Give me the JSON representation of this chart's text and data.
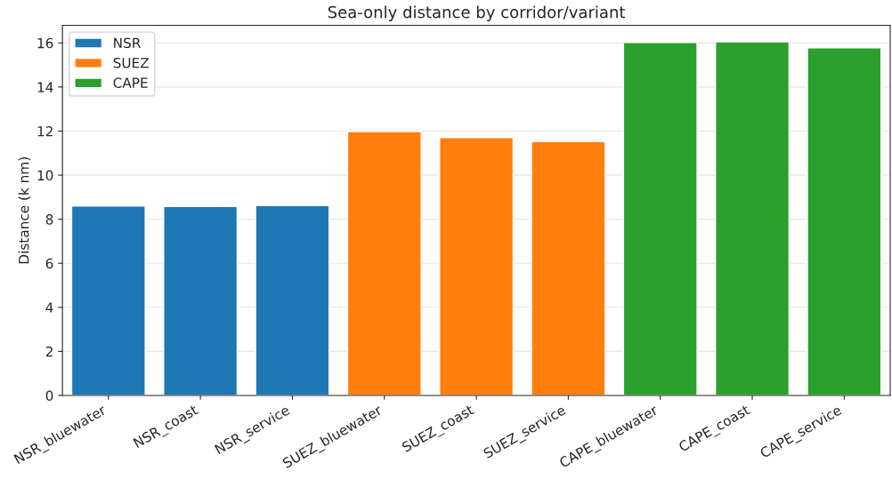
{
  "chart_data": {
    "type": "bar",
    "title": "Sea-only distance by corridor/variant",
    "ylabel": "Distance (k nm)",
    "categories": [
      "NSR_bluewater",
      "NSR_coast",
      "NSR_service",
      "SUEZ_bluewater",
      "SUEZ_coast",
      "SUEZ_service",
      "CAPE_bluewater",
      "CAPE_coast",
      "CAPE_service"
    ],
    "series": [
      {
        "name": "NSR",
        "color": "#1f77b4",
        "values": [
          8.6,
          8.58,
          8.62,
          null,
          null,
          null,
          null,
          null,
          null
        ]
      },
      {
        "name": "SUEZ",
        "color": "#ff7f0e",
        "values": [
          null,
          null,
          null,
          11.98,
          11.7,
          11.52,
          null,
          null,
          null
        ]
      },
      {
        "name": "CAPE",
        "color": "#2ca02c",
        "values": [
          null,
          null,
          null,
          null,
          null,
          null,
          16.02,
          16.05,
          15.78
        ]
      }
    ],
    "ylim": [
      0,
      16.8
    ],
    "yticks": [
      0,
      2,
      4,
      6,
      8,
      10,
      12,
      14,
      16
    ],
    "grid": "y",
    "legend": "top left"
  }
}
